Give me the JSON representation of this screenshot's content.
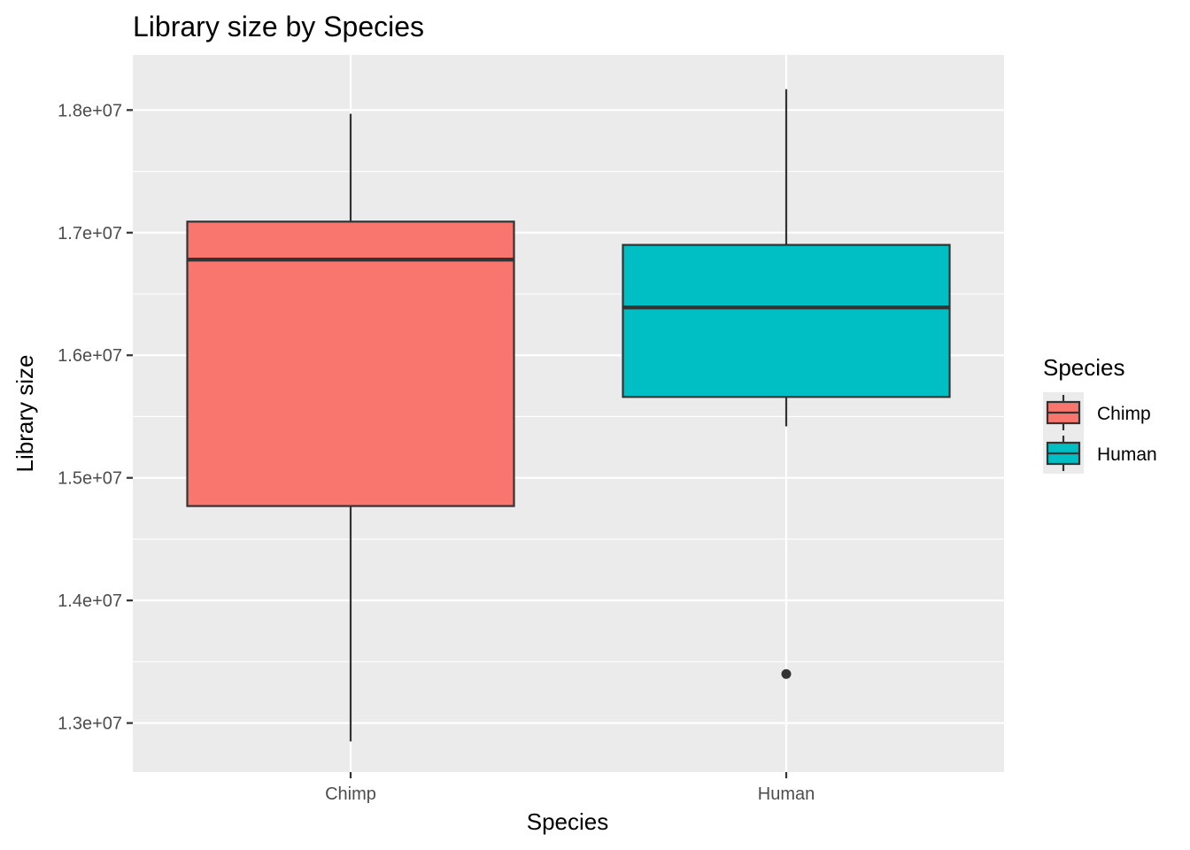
{
  "chart_data": {
    "type": "box",
    "title": "Library size by Species",
    "xlabel": "Species",
    "ylabel": "Library size",
    "categories": [
      "Chimp",
      "Human"
    ],
    "ylim": [
      12600000,
      18450000
    ],
    "yticks": [
      13000000,
      14000000,
      15000000,
      16000000,
      17000000,
      18000000
    ],
    "ytick_labels": [
      "1.3e+07",
      "1.4e+07",
      "1.5e+07",
      "1.6e+07",
      "1.7e+07",
      "1.8e+07"
    ],
    "boxes": [
      {
        "category": "Chimp",
        "min": 12850000,
        "q1": 14770000,
        "median": 16780000,
        "q3": 17090000,
        "max": 17970000,
        "outliers": []
      },
      {
        "category": "Human",
        "min": 15420000,
        "q1": 15660000,
        "median": 16390000,
        "q3": 16900000,
        "max": 18170000,
        "outliers": [
          13400000
        ]
      }
    ],
    "legend": {
      "title": "Species",
      "placement": "right",
      "entries": [
        {
          "label": "Chimp",
          "color": "#F8766D"
        },
        {
          "label": "Human",
          "color": "#00BFC4"
        }
      ]
    },
    "colors": {
      "panel": "#EBEBEB",
      "grid": "#FFFFFF",
      "outline": "#333333"
    },
    "grid": true
  }
}
